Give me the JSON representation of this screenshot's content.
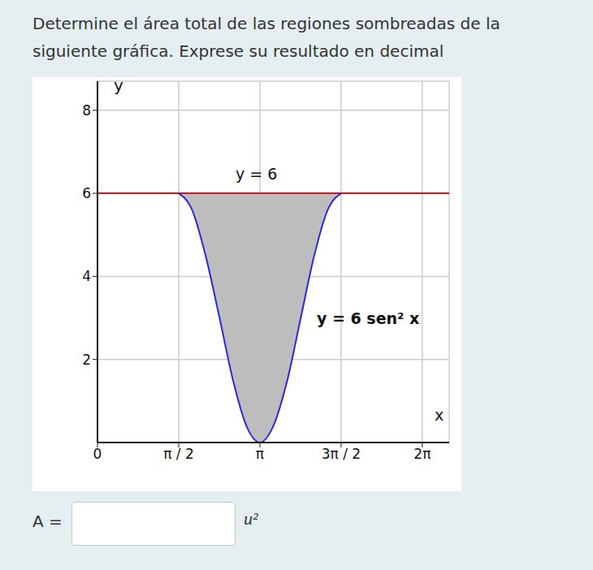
{
  "question": "Determine el área total de las regiones sombreadas de la siguiente gráfica. Exprese su resultado en decimal",
  "answer": {
    "label": "A =",
    "unit": "u²"
  },
  "chart_data": {
    "type": "area",
    "x_label": "x",
    "y_label": "y",
    "xlim": [
      0,
      6.8
    ],
    "ylim": [
      0,
      8.7
    ],
    "xticks": [
      0,
      {
        "value": 1.57,
        "label": "π / 2"
      },
      {
        "value": 3.14,
        "label": "π"
      },
      {
        "value": 4.71,
        "label": "3π / 2"
      },
      {
        "value": 6.28,
        "label": "2π"
      }
    ],
    "yticks": [
      2,
      4,
      6,
      8
    ],
    "grid": true,
    "series": [
      {
        "name": "y = 6",
        "color": "#e01010",
        "x": [
          0,
          6.8
        ],
        "values": [
          6,
          6
        ]
      },
      {
        "name": "y = 6 sen² x",
        "color": "#2b2bd6",
        "x": [
          1.57,
          1.83,
          2.09,
          2.36,
          2.62,
          2.88,
          3.14,
          3.4,
          3.67,
          3.93,
          4.19,
          4.45,
          4.71
        ],
        "values": [
          6,
          5.6,
          4.5,
          3,
          1.5,
          0.4,
          0,
          0.4,
          1.5,
          3,
          4.5,
          5.6,
          6
        ]
      }
    ],
    "shaded": {
      "color": "#bdbdbd",
      "between": [
        "y = 6 sen² x",
        "y = 6"
      ]
    }
  }
}
